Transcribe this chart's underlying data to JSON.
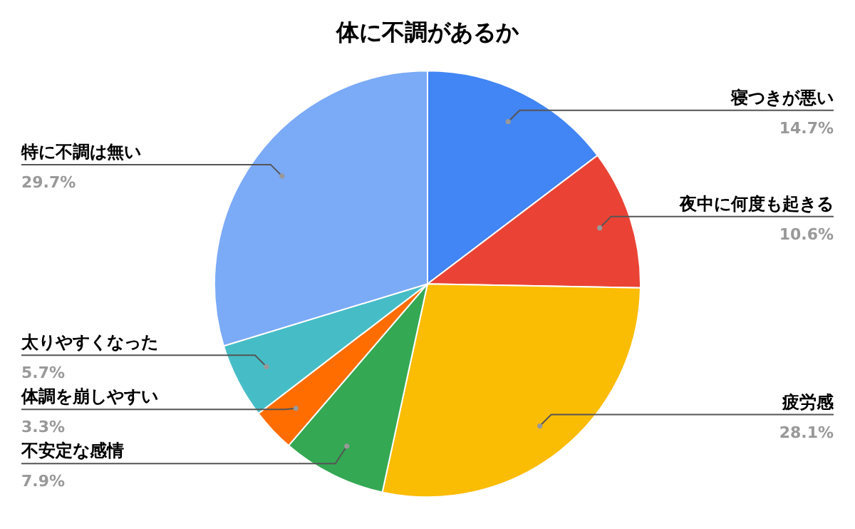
{
  "chart_data": {
    "type": "pie",
    "title": "体に不調があるか",
    "categories": [
      "寝つきが悪い",
      "夜中に何度も起きる",
      "疲労感",
      "不安定な感情",
      "体調を崩しやすい",
      "太りやすくなった",
      "特に不調は無い"
    ],
    "values": [
      14.7,
      10.6,
      28.1,
      7.9,
      3.3,
      5.7,
      29.7
    ],
    "value_labels": [
      "14.7%",
      "10.6%",
      "28.1%",
      "7.9%",
      "3.3%",
      "5.7%",
      "29.7%"
    ],
    "colors": [
      "#4285f4",
      "#ea4335",
      "#fbbc04",
      "#34a853",
      "#ff6d01",
      "#46bdc6",
      "#7baaf7"
    ],
    "legend": false
  }
}
